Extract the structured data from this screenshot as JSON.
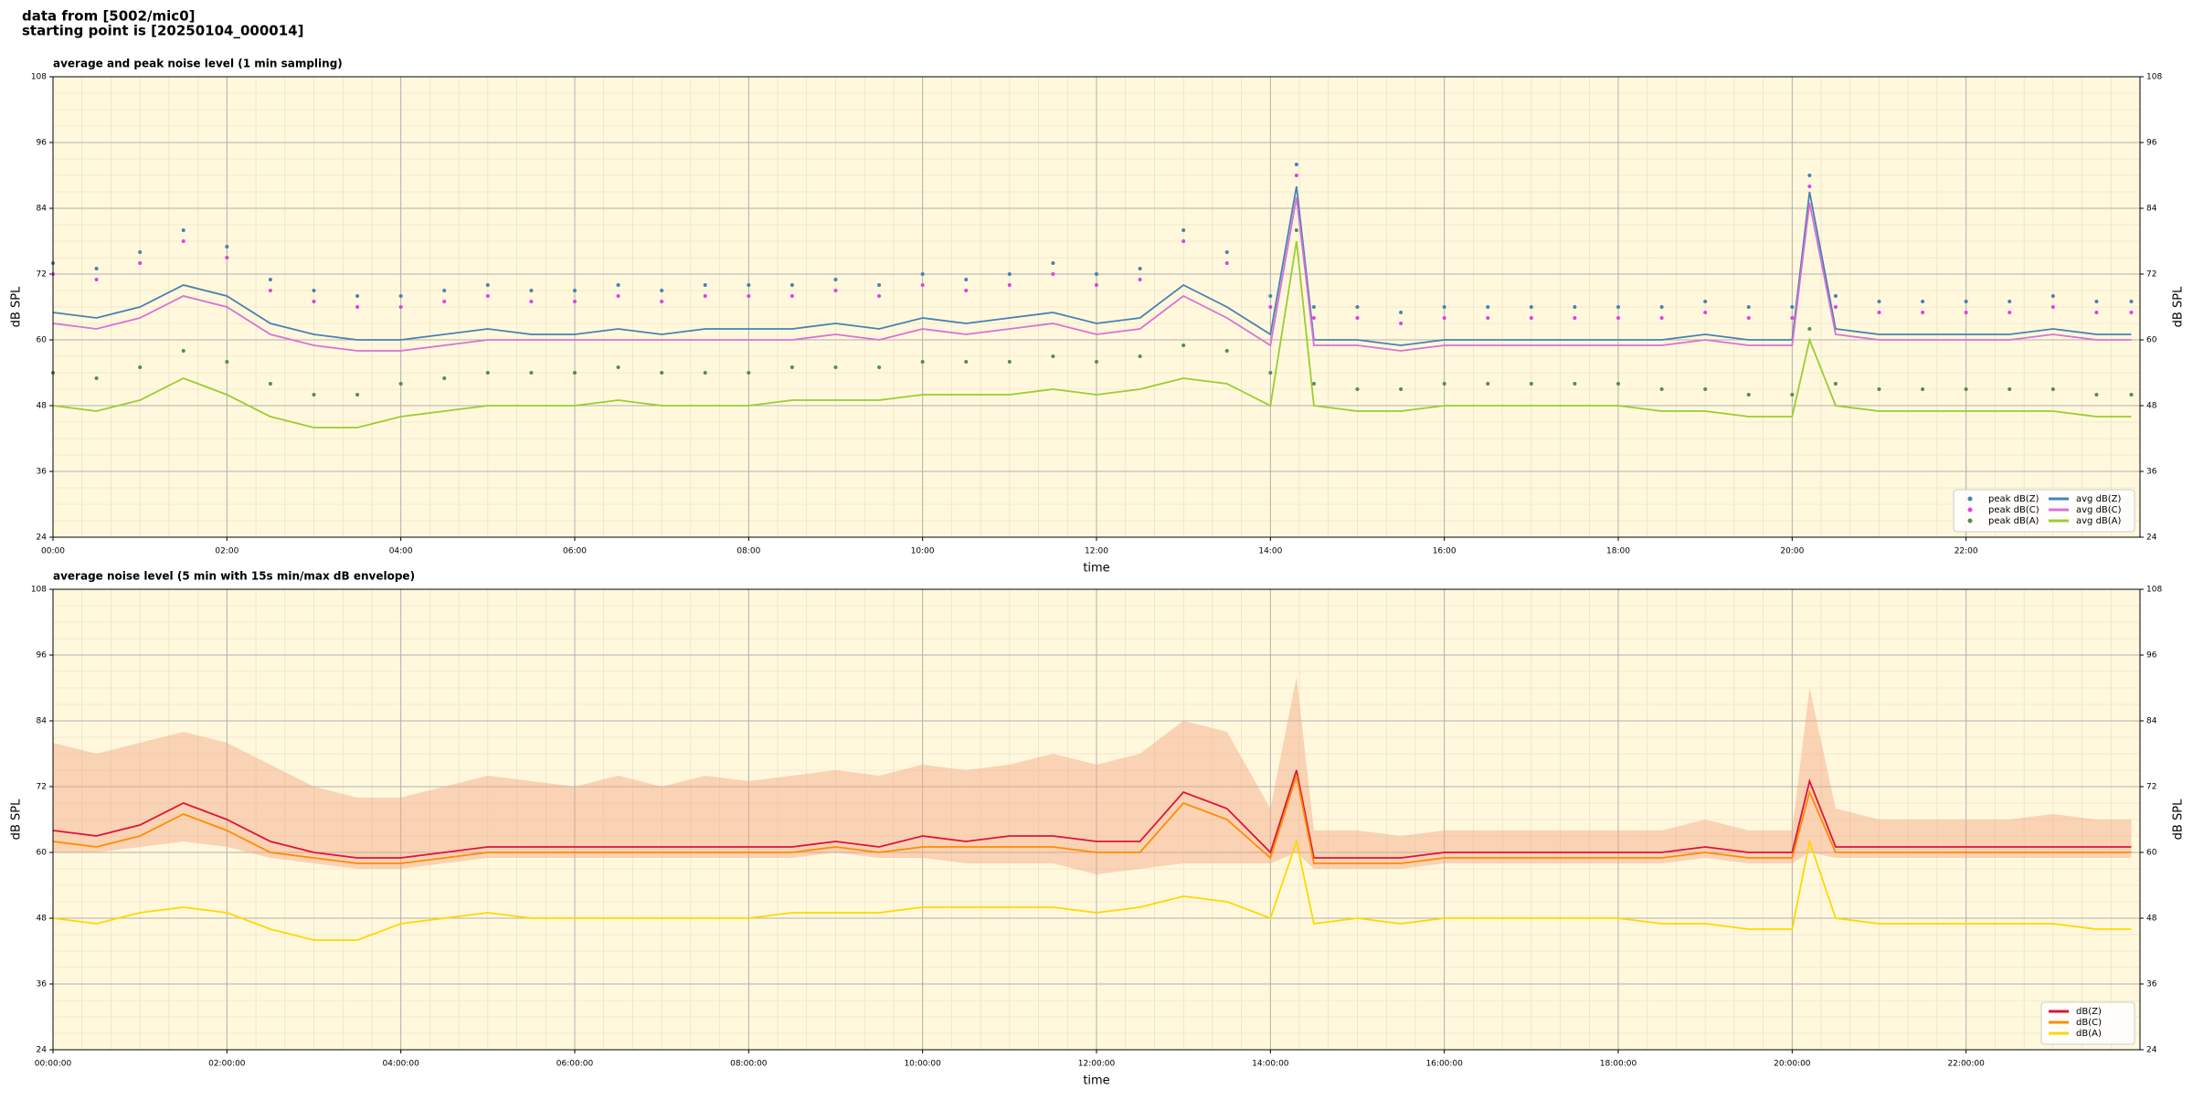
{
  "header": {
    "source": "data from [5002/mic0]",
    "start": "starting point is [20250104_000014]"
  },
  "chart_data": [
    {
      "type": "line",
      "title": "average and peak noise level (1 min sampling)",
      "xlabel": "time",
      "ylabel": "dB SPL",
      "facecolor": "#fff8dc",
      "grid": true,
      "legend": "lower right",
      "legend_columns": 2,
      "xlim": [
        0,
        24
      ],
      "ylim": [
        24,
        108
      ],
      "yticks": [
        24,
        36,
        48,
        60,
        72,
        84,
        96,
        108
      ],
      "xticks": [
        {
          "value": 0,
          "label": "00:00"
        },
        {
          "value": 2,
          "label": "02:00"
        },
        {
          "value": 4,
          "label": "04:00"
        },
        {
          "value": 6,
          "label": "06:00"
        },
        {
          "value": 8,
          "label": "08:00"
        },
        {
          "value": 10,
          "label": "10:00"
        },
        {
          "value": 12,
          "label": "12:00"
        },
        {
          "value": 14,
          "label": "14:00"
        },
        {
          "value": 16,
          "label": "16:00"
        },
        {
          "value": 18,
          "label": "18:00"
        },
        {
          "value": 20,
          "label": "20:00"
        },
        {
          "value": 22,
          "label": "22:00"
        }
      ],
      "x": [
        0,
        0.5,
        1,
        1.5,
        2,
        2.5,
        3,
        3.5,
        4,
        4.5,
        5,
        5.5,
        6,
        6.5,
        7,
        7.5,
        8,
        8.5,
        9,
        9.5,
        10,
        10.5,
        11,
        11.5,
        12,
        12.5,
        13,
        13.5,
        14,
        14.3,
        14.5,
        15,
        15.5,
        16,
        16.5,
        17,
        17.5,
        18,
        18.5,
        19,
        19.5,
        20,
        20.2,
        20.5,
        21,
        21.5,
        22,
        22.5,
        23,
        23.5,
        23.9
      ],
      "series": [
        {
          "name": "peak dB(Z)",
          "kind": "scatter",
          "color": "#4682b4",
          "values": [
            74,
            73,
            76,
            80,
            77,
            71,
            69,
            68,
            68,
            69,
            70,
            69,
            69,
            70,
            69,
            70,
            70,
            70,
            71,
            70,
            72,
            71,
            72,
            74,
            72,
            73,
            80,
            76,
            68,
            92,
            66,
            66,
            65,
            66,
            66,
            66,
            66,
            66,
            66,
            67,
            66,
            66,
            90,
            68,
            67,
            67,
            67,
            67,
            68,
            67,
            67
          ]
        },
        {
          "name": "peak dB(C)",
          "kind": "scatter",
          "color": "#e040e0",
          "values": [
            72,
            71,
            74,
            78,
            75,
            69,
            67,
            66,
            66,
            67,
            68,
            67,
            67,
            68,
            67,
            68,
            68,
            68,
            69,
            68,
            70,
            69,
            70,
            72,
            70,
            71,
            78,
            74,
            66,
            90,
            64,
            64,
            63,
            64,
            64,
            64,
            64,
            64,
            64,
            65,
            64,
            64,
            88,
            66,
            65,
            65,
            65,
            65,
            66,
            65,
            65
          ]
        },
        {
          "name": "peak dB(A)",
          "kind": "scatter",
          "color": "#4f8f4f",
          "values": [
            54,
            53,
            55,
            58,
            56,
            52,
            50,
            50,
            52,
            53,
            54,
            54,
            54,
            55,
            54,
            54,
            54,
            55,
            55,
            55,
            56,
            56,
            56,
            57,
            56,
            57,
            59,
            58,
            54,
            80,
            52,
            51,
            51,
            52,
            52,
            52,
            52,
            52,
            51,
            51,
            50,
            50,
            62,
            52,
            51,
            51,
            51,
            51,
            51,
            50,
            50
          ]
        },
        {
          "name": "avg dB(Z)",
          "kind": "line",
          "color": "#4682b4",
          "values": [
            65,
            64,
            66,
            70,
            68,
            63,
            61,
            60,
            60,
            61,
            62,
            61,
            61,
            62,
            61,
            62,
            62,
            62,
            63,
            62,
            64,
            63,
            64,
            65,
            63,
            64,
            70,
            66,
            61,
            88,
            60,
            60,
            59,
            60,
            60,
            60,
            60,
            60,
            60,
            61,
            60,
            60,
            87,
            62,
            61,
            61,
            61,
            61,
            62,
            61,
            61
          ]
        },
        {
          "name": "avg dB(C)",
          "kind": "line",
          "color": "#da70d6",
          "values": [
            63,
            62,
            64,
            68,
            66,
            61,
            59,
            58,
            58,
            59,
            60,
            60,
            60,
            60,
            60,
            60,
            60,
            60,
            61,
            60,
            62,
            61,
            62,
            63,
            61,
            62,
            68,
            64,
            59,
            86,
            59,
            59,
            58,
            59,
            59,
            59,
            59,
            59,
            59,
            60,
            59,
            59,
            85,
            61,
            60,
            60,
            60,
            60,
            61,
            60,
            60
          ]
        },
        {
          "name": "avg dB(A)",
          "kind": "line",
          "color": "#9acd32",
          "values": [
            48,
            47,
            49,
            53,
            50,
            46,
            44,
            44,
            46,
            47,
            48,
            48,
            48,
            49,
            48,
            48,
            48,
            49,
            49,
            49,
            50,
            50,
            50,
            51,
            50,
            51,
            53,
            52,
            48,
            78,
            48,
            47,
            47,
            48,
            48,
            48,
            48,
            48,
            47,
            47,
            46,
            46,
            60,
            48,
            47,
            47,
            47,
            47,
            47,
            46,
            46
          ]
        }
      ]
    },
    {
      "type": "line",
      "title": "average noise level (5 min with 15s min/max dB envelope)",
      "xlabel": "time",
      "ylabel": "dB SPL",
      "facecolor": "#fff8dc",
      "grid": true,
      "legend": "lower right",
      "legend_columns": 1,
      "xlim": [
        0,
        24
      ],
      "ylim": [
        24,
        108
      ],
      "yticks": [
        24,
        36,
        48,
        60,
        72,
        84,
        96,
        108
      ],
      "xticks": [
        {
          "value": 0,
          "label": "00:00:00"
        },
        {
          "value": 2,
          "label": "02:00:00"
        },
        {
          "value": 4,
          "label": "04:00:00"
        },
        {
          "value": 6,
          "label": "06:00:00"
        },
        {
          "value": 8,
          "label": "08:00:00"
        },
        {
          "value": 10,
          "label": "10:00:00"
        },
        {
          "value": 12,
          "label": "12:00:00"
        },
        {
          "value": 14,
          "label": "14:00:00"
        },
        {
          "value": 16,
          "label": "16:00:00"
        },
        {
          "value": 18,
          "label": "18:00:00"
        },
        {
          "value": 20,
          "label": "20:00:00"
        },
        {
          "value": 22,
          "label": "22:00:00"
        }
      ],
      "x": [
        0,
        0.5,
        1,
        1.5,
        2,
        2.5,
        3,
        3.5,
        4,
        4.5,
        5,
        5.5,
        6,
        6.5,
        7,
        7.5,
        8,
        8.5,
        9,
        9.5,
        10,
        10.5,
        11,
        11.5,
        12,
        12.5,
        13,
        13.5,
        14,
        14.3,
        14.5,
        15,
        15.5,
        16,
        16.5,
        17,
        17.5,
        18,
        18.5,
        19,
        19.5,
        20,
        20.2,
        20.5,
        21,
        21.5,
        22,
        22.5,
        23,
        23.5,
        23.9
      ],
      "envelope": {
        "color": "#f4a582",
        "max": [
          80,
          78,
          80,
          82,
          80,
          76,
          72,
          70,
          70,
          72,
          74,
          73,
          72,
          74,
          72,
          74,
          73,
          74,
          75,
          74,
          76,
          75,
          76,
          78,
          76,
          78,
          84,
          82,
          68,
          92,
          64,
          64,
          63,
          64,
          64,
          64,
          64,
          64,
          64,
          66,
          64,
          64,
          90,
          68,
          66,
          66,
          66,
          66,
          67,
          66,
          66
        ],
        "min": [
          60,
          60,
          61,
          62,
          61,
          59,
          58,
          57,
          57,
          58,
          59,
          59,
          59,
          59,
          59,
          59,
          59,
          59,
          60,
          59,
          59,
          58,
          58,
          58,
          56,
          57,
          58,
          58,
          58,
          60,
          57,
          57,
          57,
          58,
          58,
          58,
          58,
          58,
          58,
          59,
          58,
          58,
          60,
          59,
          59,
          59,
          59,
          59,
          59,
          59,
          59
        ]
      },
      "series": [
        {
          "name": "dB(Z)",
          "kind": "line",
          "color": "#dc143c",
          "values": [
            64,
            63,
            65,
            69,
            66,
            62,
            60,
            59,
            59,
            60,
            61,
            61,
            61,
            61,
            61,
            61,
            61,
            61,
            62,
            61,
            63,
            62,
            63,
            63,
            62,
            62,
            71,
            68,
            60,
            75,
            59,
            59,
            59,
            60,
            60,
            60,
            60,
            60,
            60,
            61,
            60,
            60,
            73,
            61,
            61,
            61,
            61,
            61,
            61,
            61,
            61
          ]
        },
        {
          "name": "dB(C)",
          "kind": "line",
          "color": "#ff8c00",
          "values": [
            62,
            61,
            63,
            67,
            64,
            60,
            59,
            58,
            58,
            59,
            60,
            60,
            60,
            60,
            60,
            60,
            60,
            60,
            61,
            60,
            61,
            61,
            61,
            61,
            60,
            60,
            69,
            66,
            59,
            74,
            58,
            58,
            58,
            59,
            59,
            59,
            59,
            59,
            59,
            60,
            59,
            59,
            71,
            60,
            60,
            60,
            60,
            60,
            60,
            60,
            60
          ]
        },
        {
          "name": "dB(A)",
          "kind": "line",
          "color": "#ffd700",
          "values": [
            48,
            47,
            49,
            50,
            49,
            46,
            44,
            44,
            47,
            48,
            49,
            48,
            48,
            48,
            48,
            48,
            48,
            49,
            49,
            49,
            50,
            50,
            50,
            50,
            49,
            50,
            52,
            51,
            48,
            62,
            47,
            48,
            47,
            48,
            48,
            48,
            48,
            48,
            47,
            47,
            46,
            46,
            62,
            48,
            47,
            47,
            47,
            47,
            47,
            46,
            46
          ]
        }
      ]
    }
  ]
}
